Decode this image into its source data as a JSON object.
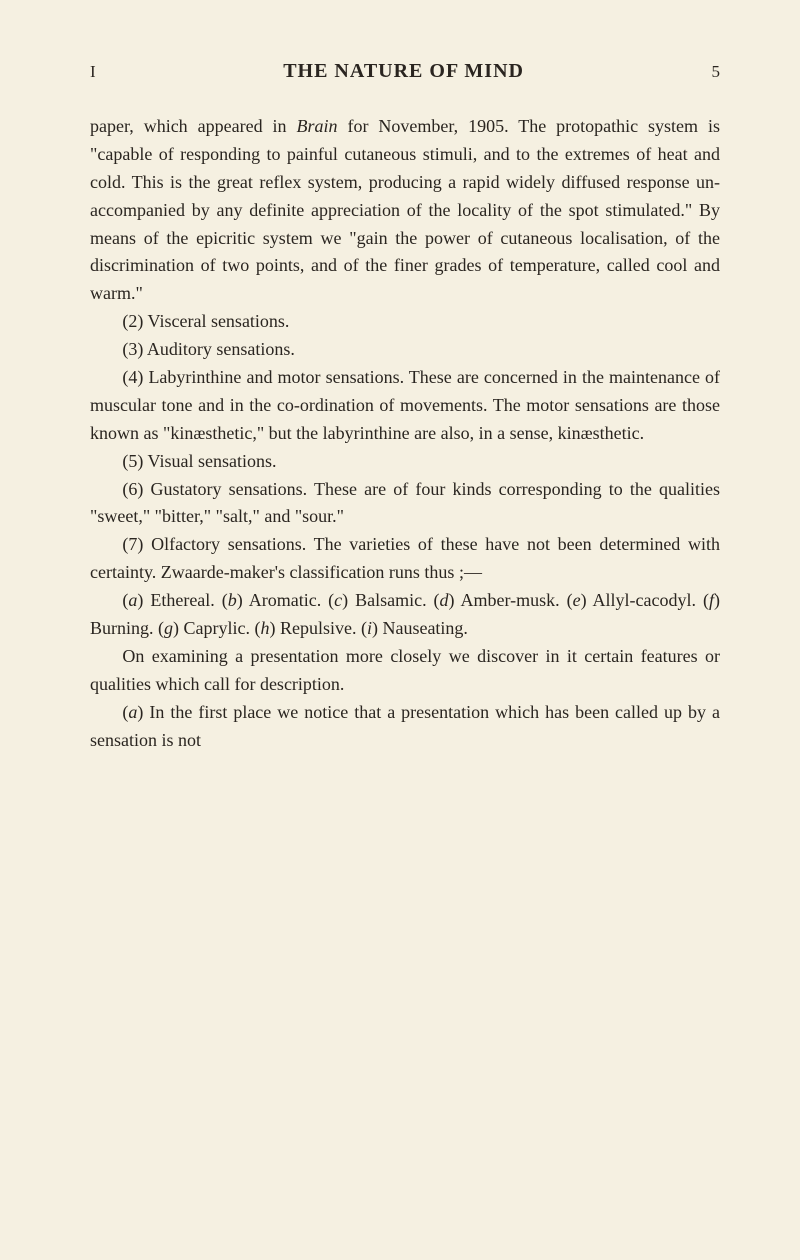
{
  "header": {
    "chapter_marker": "I",
    "chapter_title": "THE NATURE OF MIND",
    "page_number": "5"
  },
  "paragraphs": {
    "p1_pre": "paper, which appeared in ",
    "p1_italic": "Brain",
    "p1_post": " for November, 1905. The protopathic system is \"capable of responding to painful cutaneous stimuli, and to the extremes of heat and cold. This is the great reflex system, producing a rapid widely diffused response un-accompanied by any definite appreciation of the locality of the spot stimulated.\" By means of the epicritic system we \"gain the power of cutaneous localisation, of the discrimination of two points, and of the finer grades of temperature, called cool and warm.\"",
    "p2": "(2) Visceral sensations.",
    "p3": "(3) Auditory sensations.",
    "p4": "(4) Labyrinthine and motor sensations. These are concerned in the maintenance of muscular tone and in the co-ordination of movements. The motor sensations are those known as \"kinæsthetic,\" but the labyrinthine are also, in a sense, kinæsthetic.",
    "p5": "(5) Visual sensations.",
    "p6": "(6) Gustatory sensations. These are of four kinds corresponding to the qualities \"sweet,\" \"bitter,\" \"salt,\" and \"sour.\"",
    "p7": "(7) Olfactory sensations. The varieties of these have not been determined with certainty. Zwaarde-maker's classification runs thus ;—",
    "p8_pre": "(",
    "p8_a": "a",
    "p8_1": ") Ethereal.   (",
    "p8_b": "b",
    "p8_2": ") Aromatic.   (",
    "p8_c": "c",
    "p8_3": ") Balsamic.   (",
    "p8_d": "d",
    "p8_4": ") Amber-musk.    (",
    "p8_e": "e",
    "p8_5": ") Allyl-cacodyl.    (",
    "p8_f": "f",
    "p8_6": ") Burning. (",
    "p8_g": "g",
    "p8_7": ") Caprylic.   (",
    "p8_h": "h",
    "p8_8": ") Repulsive.   (",
    "p8_i": "i",
    "p8_9": ") Nauseating.",
    "p9": "On examining a presentation more closely we discover in it certain features or qualities which call for description.",
    "p10_pre": "(",
    "p10_a": "a",
    "p10_post": ") In the first place we notice that a presentation which has been called up by a sensation is not"
  }
}
